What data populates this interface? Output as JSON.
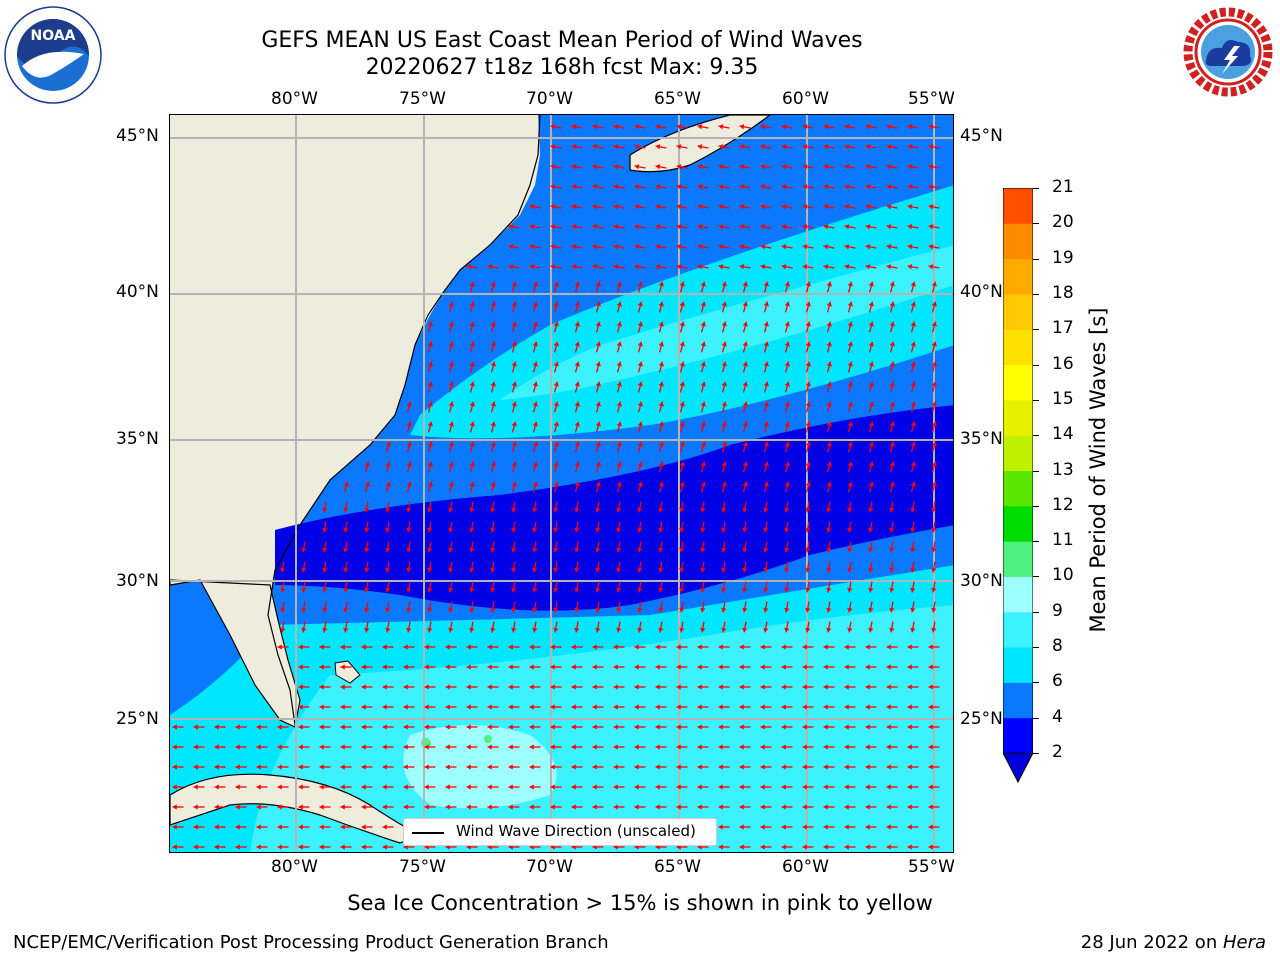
{
  "title": {
    "line1": "GEFS MEAN US East Coast Mean Period of Wind Waves",
    "line2": "20220627 t18z 168h fcst   Max: 9.35"
  },
  "logos": {
    "left": {
      "icon": "noaa-logo-icon",
      "text": "NOAA"
    },
    "right": {
      "icon": "nws-logo-icon",
      "text": "NATIONAL WEATHER SERVICE"
    }
  },
  "axes": {
    "lon_labels": [
      "80°W",
      "75°W",
      "70°W",
      "65°W",
      "60°W",
      "55°W"
    ],
    "lat_labels": [
      "45°N",
      "40°N",
      "35°N",
      "30°N",
      "25°N"
    ]
  },
  "legend": {
    "label": "Wind Wave Direction (unscaled)"
  },
  "colorbar": {
    "label": "Mean Period of Wind Waves [s]",
    "ticks": [
      "2",
      "4",
      "6",
      "8",
      "9",
      "10",
      "11",
      "12",
      "13",
      "14",
      "15",
      "16",
      "17",
      "18",
      "19",
      "20",
      "21"
    ],
    "colors": [
      "#0000ff",
      "#0a78ff",
      "#00e6ff",
      "#3cf2ff",
      "#9effff",
      "#50f082",
      "#00dc00",
      "#5ae600",
      "#bef000",
      "#e6f000",
      "#ffff00",
      "#ffe100",
      "#ffc800",
      "#ffaa00",
      "#ff8c00",
      "#ff5000",
      "#ff2800",
      "#ff0000"
    ],
    "extend_color": "#0000dd"
  },
  "colors": {
    "land": "#eeecdc",
    "vector": "#ff0000",
    "grid": "#b4b4b4"
  },
  "footer": {
    "note": "Sea Ice Concentration > 15% is shown in pink to yellow",
    "left": "NCEP/EMC/Verification Post Processing Product Generation Branch",
    "right_date": "28 Jun 2022 on ",
    "right_host": "Hera"
  }
}
